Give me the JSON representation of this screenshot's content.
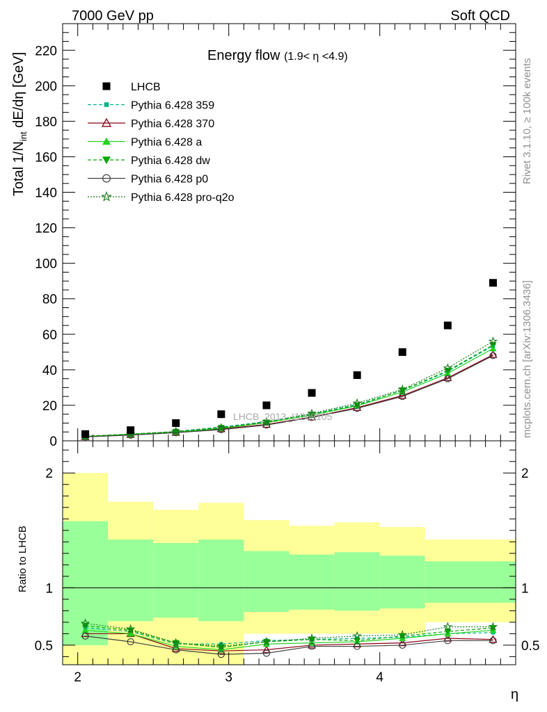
{
  "header": {
    "left": "7000 GeV pp",
    "right": "Soft QCD"
  },
  "side_labels": {
    "rivet": "Rivet 3.1.10, ≥ 100k events",
    "mcplots": "mcplots.cern.ch [arXiv:1306.3436]"
  },
  "watermark": "LHCB_2013_I1208105",
  "chart_data": [
    {
      "type": "scatter",
      "title": "Energy flow",
      "title_range": "(1.9< η <4.9)",
      "ylabel": "Total 1/N_int dE/dη [GeV]",
      "xlabel": "",
      "xlim": [
        1.9,
        4.9
      ],
      "ylim": [
        0,
        235
      ],
      "yticks": [
        0,
        20,
        40,
        60,
        80,
        100,
        120,
        140,
        160,
        180,
        200,
        220
      ],
      "ytick_labels": [
        "0",
        "20",
        "40",
        "60",
        "80",
        "100",
        "120",
        "140",
        "160",
        "180",
        "200",
        "220"
      ],
      "grid": false,
      "legend_position": "top-left",
      "x": [
        2.05,
        2.35,
        2.65,
        2.95,
        3.25,
        3.55,
        3.85,
        4.15,
        4.45,
        4.75
      ],
      "data": {
        "name": "LHCB",
        "values": [
          3.8,
          6.0,
          10.0,
          15.0,
          20.0,
          27.0,
          37.0,
          50.0,
          65.0,
          89.0
        ]
      },
      "series": [
        {
          "name": "Pythia 6.428 359",
          "color": "#00b389",
          "dash": "5,3",
          "marker": "square-small",
          "values": [
            2.5,
            3.6,
            5.3,
            7.8,
            10.8,
            15.1,
            20.5,
            28.3,
            39.0,
            53.5
          ]
        },
        {
          "name": "Pythia 6.428 370",
          "color": "#8b0014",
          "dash": "",
          "marker": "triangle-open",
          "values": [
            2.2,
            3.5,
            4.7,
            6.7,
            9.2,
            13.4,
            18.7,
            25.5,
            35.5,
            48.5
          ]
        },
        {
          "name": "Pythia 6.428 a",
          "color": "#22d422",
          "dash": "",
          "marker": "triangle-filled",
          "values": [
            2.4,
            3.6,
            4.9,
            7.0,
            10.2,
            14.5,
            19.7,
            27.5,
            38.0,
            52.0
          ]
        },
        {
          "name": "Pythia 6.428 dw",
          "color": "#00a800",
          "dash": "5,3",
          "marker": "triangle-down-filled",
          "values": [
            2.6,
            3.8,
            5.2,
            7.4,
            10.5,
            14.8,
            20.0,
            28.5,
            39.5,
            54.0
          ]
        },
        {
          "name": "Pythia 6.428 p0",
          "color": "#404040",
          "dash": "",
          "marker": "circle-open",
          "values": [
            2.2,
            3.2,
            4.6,
            6.3,
            8.9,
            13.2,
            18.3,
            25.0,
            35.0,
            48.0
          ]
        },
        {
          "name": "Pythia 6.428 pro-q2o",
          "color": "#1a7a1a",
          "dash": "2,2",
          "marker": "star-open",
          "values": [
            2.6,
            3.8,
            5.2,
            7.3,
            10.7,
            15.4,
            21.2,
            29.0,
            41.0,
            56.0
          ]
        }
      ]
    },
    {
      "type": "line",
      "title": "",
      "ylabel": "Ratio to LHCB",
      "xlabel": "η",
      "xlim": [
        1.9,
        4.9
      ],
      "ylim": [
        0.33,
        2.28
      ],
      "xticks": [
        2,
        3,
        4
      ],
      "xtick_labels": [
        "2",
        "3",
        "4"
      ],
      "yticks": [
        0.5,
        1,
        2
      ],
      "ytick_labels": [
        "0.5",
        "1",
        "2"
      ],
      "bands": {
        "bin_edges": [
          1.9,
          2.2,
          2.5,
          2.8,
          3.1,
          3.4,
          3.7,
          4.0,
          4.3,
          4.9
        ],
        "inner_low": [
          0.5,
          0.71,
          0.74,
          0.71,
          0.79,
          0.81,
          0.8,
          0.82,
          0.87
        ],
        "inner_high": [
          1.58,
          1.42,
          1.39,
          1.42,
          1.32,
          1.29,
          1.31,
          1.28,
          1.23
        ],
        "outer_low": [
          0.33,
          0.33,
          0.33,
          0.33,
          0.6,
          0.6,
          0.6,
          0.6,
          0.7
        ],
        "outer_high": [
          2.0,
          1.75,
          1.68,
          1.74,
          1.59,
          1.54,
          1.57,
          1.53,
          1.42
        ],
        "inner_color": "#99ff99",
        "outer_color": "#ffff99"
      },
      "x": [
        2.05,
        2.35,
        2.65,
        2.95,
        3.25,
        3.55,
        3.85,
        4.15,
        4.45,
        4.75
      ],
      "series": [
        {
          "name": "Pythia 6.428 359",
          "values": [
            0.65,
            0.62,
            0.51,
            0.51,
            0.54,
            0.55,
            0.56,
            0.57,
            0.6,
            0.61
          ]
        },
        {
          "name": "Pythia 6.428 370",
          "values": [
            0.6,
            0.6,
            0.47,
            0.45,
            0.46,
            0.5,
            0.51,
            0.52,
            0.56,
            0.55
          ]
        },
        {
          "name": "Pythia 6.428 a",
          "values": [
            0.63,
            0.6,
            0.49,
            0.46,
            0.51,
            0.52,
            0.53,
            0.56,
            0.6,
            0.63
          ]
        },
        {
          "name": "Pythia 6.428 dw",
          "values": [
            0.67,
            0.63,
            0.52,
            0.48,
            0.53,
            0.55,
            0.54,
            0.58,
            0.62,
            0.65
          ]
        },
        {
          "name": "Pythia 6.428 p0",
          "values": [
            0.58,
            0.53,
            0.46,
            0.42,
            0.43,
            0.49,
            0.49,
            0.5,
            0.54,
            0.54
          ]
        },
        {
          "name": "Pythia 6.428 pro-q2o",
          "values": [
            0.69,
            0.64,
            0.52,
            0.49,
            0.53,
            0.56,
            0.58,
            0.59,
            0.66,
            0.66
          ]
        }
      ]
    }
  ]
}
